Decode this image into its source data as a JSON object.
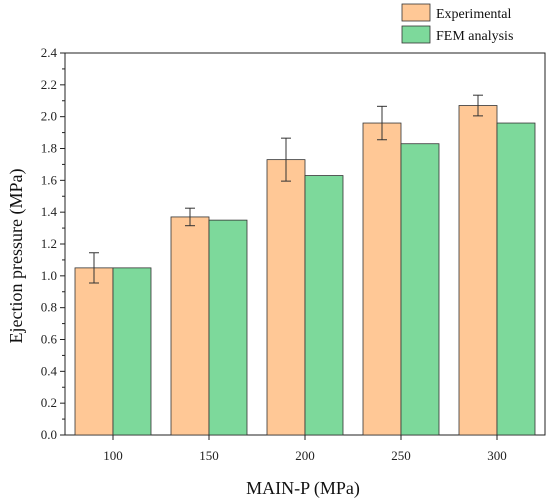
{
  "chart_data": {
    "type": "bar",
    "categories": [
      "100",
      "150",
      "200",
      "250",
      "300"
    ],
    "series": [
      {
        "name": "Experimental",
        "values": [
          1.05,
          1.37,
          1.73,
          1.96,
          2.07
        ],
        "error": [
          0.095,
          0.055,
          0.135,
          0.105,
          0.065
        ],
        "color": "#FFC896"
      },
      {
        "name": "FEM analysis",
        "values": [
          1.05,
          1.35,
          1.63,
          1.83,
          1.96
        ],
        "color": "#7DD99B"
      }
    ],
    "xlabel": "MAIN-P (MPa)",
    "ylabel": "Ejection pressure (MPa)",
    "ylim": [
      0,
      2.4
    ],
    "yticks": [
      "0.0",
      "0.2",
      "0.4",
      "0.6",
      "0.8",
      "1.0",
      "1.2",
      "1.4",
      "1.6",
      "1.8",
      "2.0",
      "2.2",
      "2.4"
    ],
    "grid": false,
    "legend_position": "top-right"
  }
}
